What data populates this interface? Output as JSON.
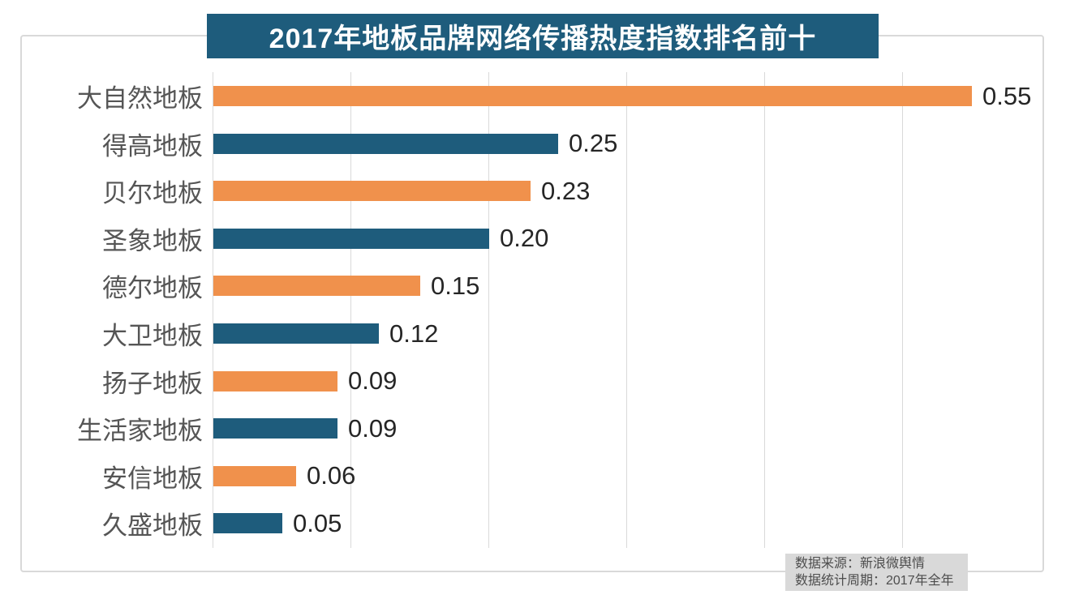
{
  "chart_data": {
    "type": "bar",
    "orientation": "horizontal",
    "title": "2017年地板品牌网络传播热度指数排名前十",
    "categories": [
      "大自然地板",
      "得高地板",
      "贝尔地板",
      "圣象地板",
      "德尔地板",
      "大卫地板",
      "扬子地板",
      "生活家地板",
      "安信地板",
      "久盛地板"
    ],
    "values": [
      0.55,
      0.25,
      0.23,
      0.2,
      0.15,
      0.12,
      0.09,
      0.09,
      0.06,
      0.05
    ],
    "value_labels": [
      "0.55",
      "0.25",
      "0.23",
      "0.20",
      "0.15",
      "0.12",
      "0.09",
      "0.09",
      "0.06",
      "0.05"
    ],
    "xlim": [
      0,
      0.6
    ],
    "gridline_step": 0.1,
    "grid": true,
    "legend": "none",
    "bar_color_odd": "#F0914C",
    "bar_color_even": "#1E5C7C"
  },
  "title_bar": {
    "bg_color": "#1E5C7C",
    "text_color": "#FFFFFF"
  },
  "footer": {
    "line1": "数据来源：新浪微舆情",
    "line2": "数据统计周期：2017年全年",
    "bg_color": "#D9D9D9"
  },
  "colors": {
    "gridline": "#D9D9D9",
    "frame_border": "#D9D9D9",
    "category_text": "#555555",
    "value_text": "#262626"
  }
}
